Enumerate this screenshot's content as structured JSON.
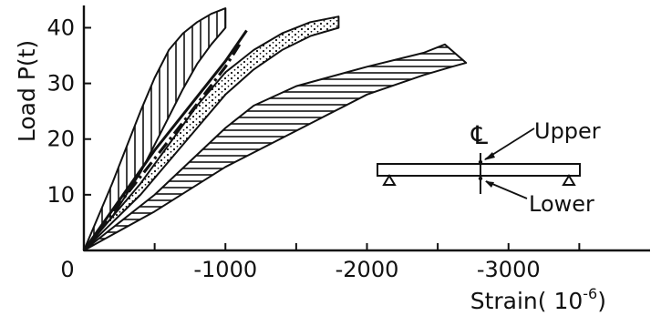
{
  "chart_data": {
    "type": "line",
    "title": "",
    "xlabel": "Strain",
    "xlabel_unit": "( 10",
    "xlabel_exp": "-6",
    "xlabel_close": ")",
    "ylabel": "Load P(t)",
    "origin_label": "0",
    "xlim": [
      0,
      -4000
    ],
    "ylim": [
      0,
      44
    ],
    "x_ticks_minor": [
      -500,
      -1000,
      -1500,
      -2000,
      -2500,
      -3000,
      -3500
    ],
    "x_tick_labels": [
      {
        "value": -1000,
        "label": "-1000"
      },
      {
        "value": -2000,
        "label": "-2000"
      },
      {
        "value": -3000,
        "label": "-3000"
      }
    ],
    "y_ticks": [
      10,
      20,
      30,
      40
    ],
    "y_tick_labels": [
      "10",
      "20",
      "30",
      "40"
    ],
    "grid": false,
    "series": [
      {
        "style": "vertical-hatched band",
        "upper": {
          "x": [
            0,
            -200,
            -400,
            -500,
            -600,
            -700,
            -800,
            -900,
            -1000
          ],
          "y": [
            0,
            12,
            25,
            31,
            36,
            39,
            41,
            42.5,
            43.5
          ]
        },
        "lower": {
          "x": [
            0,
            -200,
            -400,
            -600,
            -700,
            -800,
            -900,
            -1000
          ],
          "y": [
            0,
            6,
            14,
            24,
            29,
            33.5,
            37,
            40
          ]
        }
      },
      {
        "style": "dotted band",
        "upper": {
          "x": [
            0,
            -400,
            -800,
            -1000,
            -1200,
            -1400,
            -1600,
            -1800
          ],
          "y": [
            0,
            12,
            26,
            32,
            36,
            39,
            41,
            42
          ]
        },
        "lower": {
          "x": [
            0,
            -400,
            -800,
            -1000,
            -1200,
            -1400,
            -1600,
            -1800
          ],
          "y": [
            0,
            10,
            22,
            28,
            32.5,
            36,
            38.5,
            40
          ]
        }
      },
      {
        "style": "horizontal-hatched band",
        "upper": {
          "x": [
            0,
            -500,
            -1000,
            -1200,
            -1500,
            -2000,
            -2400,
            -2550
          ],
          "y": [
            0,
            10,
            22,
            26,
            29.5,
            33,
            35.5,
            37
          ]
        },
        "lower": {
          "x": [
            0,
            -500,
            -1000,
            -1500,
            -2000,
            -2400,
            -2600,
            -2700
          ],
          "y": [
            0,
            7,
            15,
            21.5,
            28,
            31.5,
            33,
            33.7
          ]
        }
      },
      {
        "style": "dash-dot line",
        "x": [
          0,
          -300,
          -700,
          -1000,
          -1100
        ],
        "y": [
          0,
          10,
          23,
          33,
          37
        ]
      },
      {
        "style": "solid line",
        "x": [
          0,
          -500,
          -1000,
          -1150
        ],
        "y": [
          0,
          18,
          34,
          39.5
        ]
      }
    ],
    "inset": {
      "upper_label": "Upper",
      "lower_label": "Lower",
      "centerline_symbol": "℄"
    }
  }
}
